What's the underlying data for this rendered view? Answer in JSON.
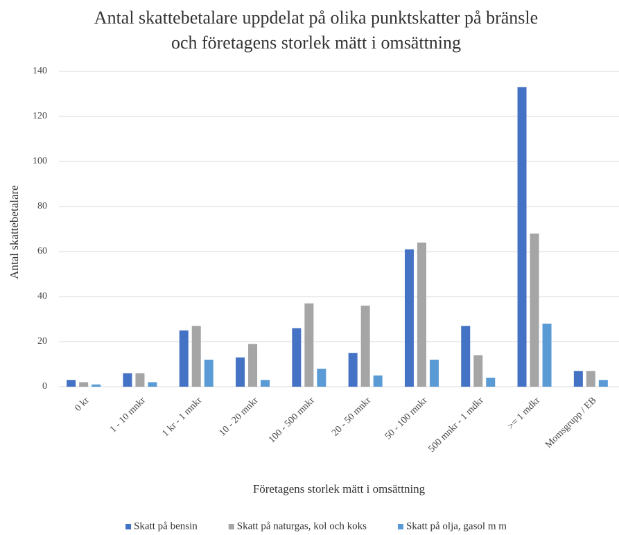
{
  "chart_data": {
    "type": "bar",
    "title": [
      "Antal skattebetalare uppdelat på olika punktskatter på bränsle",
      "och företagens storlek mätt i omsättning"
    ],
    "x_label": "Företagens storlek mätt i omsättning",
    "y_label": "Antal skattebetalare",
    "categories": [
      "0 kr",
      "1 - 10 mnkr",
      "1 kr - 1 mnkr",
      "10 - 20 mnkr",
      "100 - 500 mnkr",
      "20 - 50 mnkr",
      "50 - 100 mnkr",
      "500 mnkr - 1 mdkr",
      ">= 1 mdkr",
      "Momsgrupp / EB"
    ],
    "series": [
      {
        "name": "Skatt på bensin",
        "color": "#4472c4",
        "values": [
          3,
          6,
          25,
          13,
          26,
          15,
          61,
          27,
          133,
          7
        ]
      },
      {
        "name": "Skatt på naturgas, kol och koks",
        "color": "#a5a5a5",
        "values": [
          2,
          6,
          27,
          19,
          37,
          36,
          64,
          14,
          68,
          7
        ]
      },
      {
        "name": "Skatt på olja, gasol m m",
        "color": "#5b9bd5",
        "values": [
          1,
          2,
          12,
          3,
          8,
          5,
          12,
          4,
          28,
          3
        ]
      }
    ],
    "ylim": [
      0,
      140
    ],
    "yticks": [
      0,
      20,
      40,
      60,
      80,
      100,
      120,
      140
    ],
    "grid": true,
    "legend": "bottom"
  }
}
